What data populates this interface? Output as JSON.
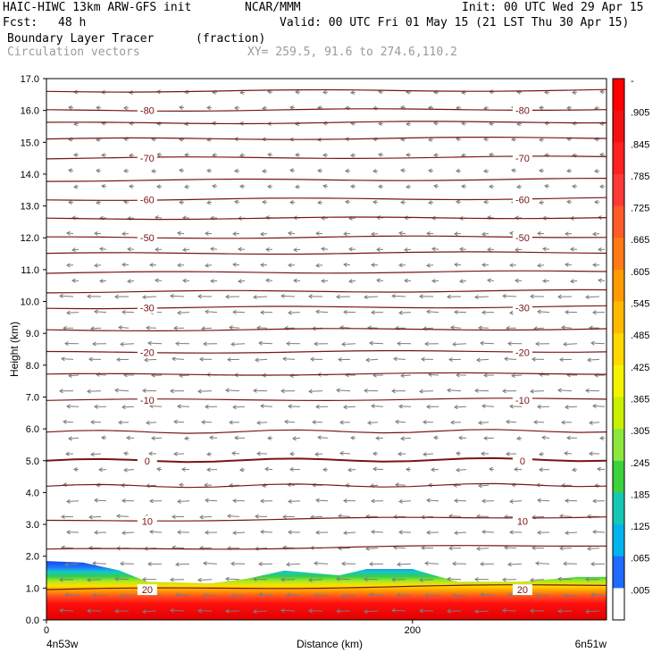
{
  "header": {
    "title_left": "HAIC-HIWC 13km ARW-GFS init",
    "org": "NCAR/MMM",
    "init": "Init: 00 UTC Wed 29 Apr 15",
    "fcst_label": "Fcst:",
    "fcst_value": "48 h",
    "valid": "Valid: 00 UTC Fri 01 May 15 (21 LST Thu 30 Apr 15)",
    "field1_name": "Boundary Layer Tracer",
    "field1_units": "(fraction)",
    "field2_name": "Circulation vectors",
    "xy": "XY= 259.5, 91.6 to 274.6,110.2"
  },
  "chart_data": {
    "type": "heatmap",
    "ylabel": "Height (km)",
    "xlabel": "Distance (km)",
    "ylim": [
      0,
      17
    ],
    "xlim": [
      0,
      306
    ],
    "y_ticks": [
      "0.0",
      "1.0",
      "2.0",
      "3.0",
      "4.0",
      "5.0",
      "6.0",
      "7.0",
      "8.0",
      "9.0",
      "10.0",
      "11.0",
      "12.0",
      "13.0",
      "14.0",
      "15.0",
      "16.0",
      "17.0"
    ],
    "x_ticks": [
      {
        "value": 0,
        "label": "0"
      },
      {
        "value": 200,
        "label": "200"
      }
    ],
    "x_endpoint_labels": {
      "left": "4n53w",
      "right": "6n51w"
    },
    "colorbar": {
      "labels": [
        "-",
        ".905",
        ".845",
        ".785",
        ".725",
        ".665",
        ".605",
        ".545",
        ".485",
        ".425",
        ".365",
        ".305",
        ".245",
        ".185",
        ".125",
        ".065",
        ".005"
      ],
      "colors": [
        "#ff0000",
        "#f21010",
        "#ff2020",
        "#ff3838",
        "#ff5a28",
        "#ff7a14",
        "#ff9a00",
        "#ffba00",
        "#ffd800",
        "#f4f400",
        "#c8f000",
        "#8ee83c",
        "#3cd23c",
        "#14c8b4",
        "#00b4f0",
        "#1e6cff",
        "#ffffff"
      ]
    },
    "boundary_layer_top_km": [
      {
        "x": 0,
        "y": 1.85
      },
      {
        "x": 20,
        "y": 1.8
      },
      {
        "x": 40,
        "y": 1.55
      },
      {
        "x": 55,
        "y": 1.2
      },
      {
        "x": 90,
        "y": 1.15
      },
      {
        "x": 110,
        "y": 1.3
      },
      {
        "x": 130,
        "y": 1.55
      },
      {
        "x": 160,
        "y": 1.4
      },
      {
        "x": 175,
        "y": 1.6
      },
      {
        "x": 200,
        "y": 1.6
      },
      {
        "x": 215,
        "y": 1.35
      },
      {
        "x": 225,
        "y": 1.2
      },
      {
        "x": 260,
        "y": 1.2
      },
      {
        "x": 290,
        "y": 1.35
      },
      {
        "x": 306,
        "y": 1.35
      }
    ],
    "isotherm_labels": [
      {
        "value": "-80",
        "y": 16.0
      },
      {
        "value": "-70",
        "y": 14.5
      },
      {
        "value": "-60",
        "y": 13.2
      },
      {
        "value": "-50",
        "y": 12.0
      },
      {
        "value": "-30",
        "y": 9.8
      },
      {
        "value": "-20",
        "y": 8.4
      },
      {
        "value": "-10",
        "y": 6.9
      },
      {
        "value": "0",
        "y": 5.0
      },
      {
        "value": "10",
        "y": 3.1
      },
      {
        "value": "20",
        "y": 0.95
      }
    ],
    "contour_levels_km": [
      0.95,
      2.2,
      3.1,
      4.2,
      5.0,
      5.9,
      6.9,
      7.7,
      8.4,
      9.1,
      9.8,
      10.3,
      10.9,
      11.5,
      12.0,
      12.6,
      13.2,
      13.8,
      14.5,
      15.1,
      15.6,
      16.0,
      16.6
    ]
  }
}
